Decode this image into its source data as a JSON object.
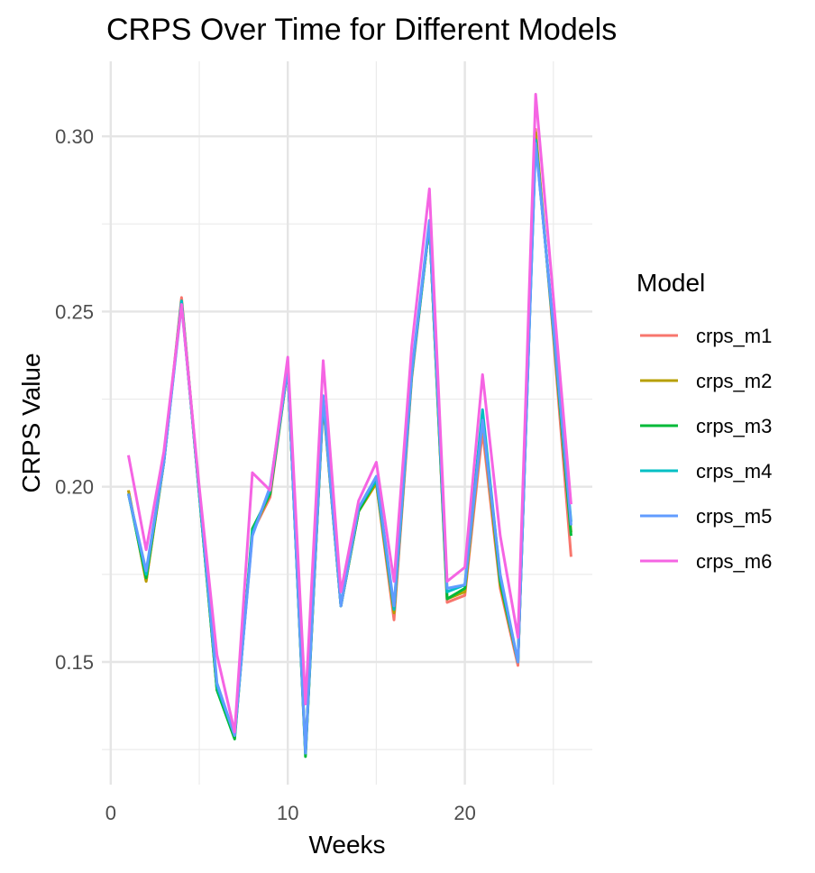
{
  "chart_data": {
    "type": "line",
    "title": "CRPS Over Time for Different Models",
    "xlabel": "Weeks",
    "ylabel": "CRPS Value",
    "xlim": [
      -0.5,
      27.2
    ],
    "ylim": [
      0.115,
      0.3214
    ],
    "xticks": [
      0,
      10,
      20
    ],
    "xtick_labels": [
      "0",
      "10",
      "20"
    ],
    "yticks": [
      0.15,
      0.2,
      0.25,
      0.3
    ],
    "ytick_labels": [
      "0.15",
      "0.20",
      "0.25",
      "0.30"
    ],
    "grid": true,
    "legend_title": "Model",
    "legend_position": "right",
    "x": [
      1,
      2,
      3,
      4,
      5,
      6,
      7,
      8,
      9,
      10,
      11,
      12,
      13,
      14,
      15,
      16,
      17,
      18,
      19,
      20,
      21,
      22,
      23,
      24,
      25,
      26
    ],
    "series": [
      {
        "name": "crps_m1",
        "color": "#F8766D",
        "values": [
          0.199,
          0.173,
          0.207,
          0.254,
          0.198,
          0.142,
          0.129,
          0.187,
          0.197,
          0.234,
          0.124,
          0.224,
          0.166,
          0.193,
          0.201,
          0.162,
          0.231,
          0.275,
          0.167,
          0.169,
          0.216,
          0.171,
          0.149,
          0.302,
          0.243,
          0.18
        ]
      },
      {
        "name": "crps_m2",
        "color": "#B79F00",
        "values": [
          0.199,
          0.173,
          0.207,
          0.253,
          0.198,
          0.142,
          0.129,
          0.187,
          0.198,
          0.234,
          0.124,
          0.225,
          0.166,
          0.193,
          0.201,
          0.164,
          0.232,
          0.275,
          0.168,
          0.17,
          0.219,
          0.172,
          0.15,
          0.301,
          0.244,
          0.187
        ]
      },
      {
        "name": "crps_m3",
        "color": "#00BA38",
        "values": [
          0.198,
          0.174,
          0.207,
          0.253,
          0.198,
          0.142,
          0.128,
          0.188,
          0.198,
          0.234,
          0.123,
          0.225,
          0.166,
          0.193,
          0.202,
          0.165,
          0.232,
          0.275,
          0.168,
          0.171,
          0.221,
          0.173,
          0.15,
          0.299,
          0.245,
          0.186
        ]
      },
      {
        "name": "crps_m4",
        "color": "#00BFC4",
        "values": [
          0.198,
          0.175,
          0.207,
          0.253,
          0.198,
          0.143,
          0.129,
          0.187,
          0.199,
          0.234,
          0.124,
          0.225,
          0.166,
          0.194,
          0.202,
          0.165,
          0.232,
          0.275,
          0.17,
          0.172,
          0.222,
          0.174,
          0.15,
          0.299,
          0.245,
          0.19
        ]
      },
      {
        "name": "crps_m5",
        "color": "#619CFF",
        "values": [
          0.198,
          0.176,
          0.207,
          0.252,
          0.199,
          0.144,
          0.129,
          0.186,
          0.2,
          0.234,
          0.124,
          0.226,
          0.166,
          0.194,
          0.203,
          0.166,
          0.233,
          0.276,
          0.171,
          0.172,
          0.219,
          0.175,
          0.15,
          0.298,
          0.246,
          0.189
        ]
      },
      {
        "name": "crps_m6",
        "color": "#F564E3",
        "values": [
          0.209,
          0.182,
          0.21,
          0.252,
          0.2,
          0.152,
          0.13,
          0.204,
          0.199,
          0.237,
          0.138,
          0.236,
          0.17,
          0.196,
          0.207,
          0.173,
          0.24,
          0.285,
          0.173,
          0.177,
          0.232,
          0.186,
          0.157,
          0.312,
          0.254,
          0.195
        ]
      }
    ]
  }
}
